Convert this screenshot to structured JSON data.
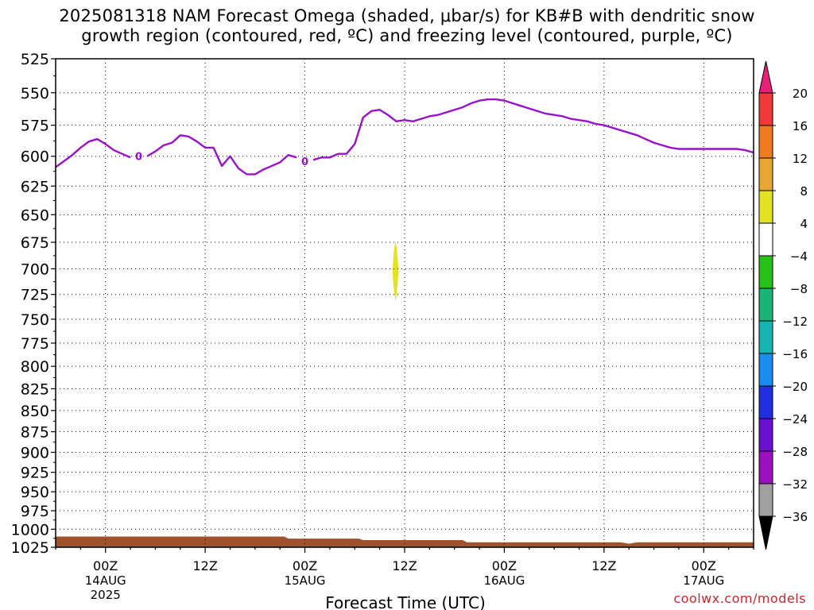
{
  "title": {
    "line1": "2025081318 NAM Forecast Omega (shaded, μbar/s) for KB#B with dendritic snow",
    "line2": "growth region (contoured, red, ºC) and freezing level (contoured, purple, ºC)"
  },
  "credit": "coolwx.com/models",
  "chart_data": {
    "type": "line",
    "xlabel": "Forecast Time (UTC)",
    "ylabel": "",
    "x_range_hours": [
      18,
      102
    ],
    "y_range": [
      1025,
      525
    ],
    "y_scale": "log-pressure",
    "grid": true,
    "y_ticks": [
      525,
      550,
      575,
      600,
      625,
      650,
      675,
      700,
      725,
      750,
      775,
      800,
      825,
      850,
      875,
      900,
      925,
      950,
      975,
      1000,
      1025
    ],
    "x_ticks": [
      {
        "hour": 24,
        "label": "00Z",
        "sub": [
          "14AUG",
          "2025"
        ]
      },
      {
        "hour": 36,
        "label": "12Z",
        "sub": []
      },
      {
        "hour": 48,
        "label": "00Z",
        "sub": [
          "15AUG"
        ]
      },
      {
        "hour": 60,
        "label": "12Z",
        "sub": []
      },
      {
        "hour": 72,
        "label": "00Z",
        "sub": [
          "16AUG"
        ]
      },
      {
        "hour": 84,
        "label": "12Z",
        "sub": []
      },
      {
        "hour": 96,
        "label": "00Z",
        "sub": [
          "17AUG"
        ]
      }
    ],
    "freezing_level": {
      "color": "#9a12c8",
      "label": "0",
      "label_points": [
        [
          28,
          600
        ],
        [
          48,
          604
        ]
      ],
      "points": [
        [
          18,
          609
        ],
        [
          19,
          604
        ],
        [
          20,
          599
        ],
        [
          21,
          593
        ],
        [
          22,
          588
        ],
        [
          23,
          586
        ],
        [
          24,
          590
        ],
        [
          25,
          595
        ],
        [
          26,
          598
        ],
        [
          27,
          601
        ],
        [
          28,
          600
        ],
        [
          29,
          600
        ],
        [
          30,
          596
        ],
        [
          31,
          591
        ],
        [
          32,
          589
        ],
        [
          33,
          583
        ],
        [
          34,
          584
        ],
        [
          35,
          588
        ],
        [
          36,
          593
        ],
        [
          37,
          593
        ],
        [
          38,
          608
        ],
        [
          39,
          600
        ],
        [
          40,
          610
        ],
        [
          41,
          615
        ],
        [
          42,
          615
        ],
        [
          43,
          611
        ],
        [
          44,
          608
        ],
        [
          45,
          605
        ],
        [
          46,
          599
        ],
        [
          47,
          601
        ],
        [
          48,
          604
        ],
        [
          49,
          603
        ],
        [
          50,
          601
        ],
        [
          51,
          601
        ],
        [
          52,
          598
        ],
        [
          53,
          598
        ],
        [
          54,
          590
        ],
        [
          55,
          569
        ],
        [
          56,
          564
        ],
        [
          57,
          563
        ],
        [
          58,
          567
        ],
        [
          59,
          572
        ],
        [
          60,
          571
        ],
        [
          61,
          572
        ],
        [
          62,
          570
        ],
        [
          63,
          568
        ],
        [
          64,
          567
        ],
        [
          65,
          565
        ],
        [
          66,
          563
        ],
        [
          67,
          561
        ],
        [
          68,
          558
        ],
        [
          69,
          556
        ],
        [
          70,
          555
        ],
        [
          71,
          555
        ],
        [
          72,
          556
        ],
        [
          73,
          558
        ],
        [
          74,
          560
        ],
        [
          75,
          562
        ],
        [
          76,
          564
        ],
        [
          77,
          566
        ],
        [
          78,
          567
        ],
        [
          79,
          568
        ],
        [
          80,
          570
        ],
        [
          81,
          571
        ],
        [
          82,
          572
        ],
        [
          83,
          574
        ],
        [
          84,
          575
        ],
        [
          85,
          577
        ],
        [
          86,
          579
        ],
        [
          87,
          581
        ],
        [
          88,
          583
        ],
        [
          89,
          586
        ],
        [
          90,
          589
        ],
        [
          91,
          591
        ],
        [
          92,
          593
        ],
        [
          93,
          594
        ],
        [
          94,
          594
        ],
        [
          95,
          594
        ],
        [
          96,
          594
        ],
        [
          97,
          594
        ],
        [
          98,
          594
        ],
        [
          99,
          594
        ],
        [
          100,
          594
        ],
        [
          101,
          595
        ],
        [
          102,
          597
        ]
      ]
    },
    "omega_shading": [
      {
        "hour": 58.9,
        "p_top": 673,
        "p_bottom": 732,
        "value_range": [
          4,
          8
        ],
        "color": "#e3e322"
      }
    ],
    "terrain": {
      "color": "#a0522d",
      "points": [
        [
          18,
          1010
        ],
        [
          45.5,
          1010
        ],
        [
          46,
          1013
        ],
        [
          54.5,
          1013
        ],
        [
          55,
          1015
        ],
        [
          67,
          1015
        ],
        [
          67.5,
          1018
        ],
        [
          86,
          1018
        ],
        [
          87,
          1020
        ],
        [
          88,
          1018
        ],
        [
          102,
          1018
        ]
      ]
    },
    "colorbar": {
      "labels": [
        "20",
        "16",
        "12",
        "8",
        "4",
        "-4",
        "-8",
        "-12",
        "-16",
        "-20",
        "-24",
        "-28",
        "-32",
        "-36"
      ],
      "colors": [
        "#e8207a",
        "#f03a3a",
        "#f07a20",
        "#e6a832",
        "#e3e322",
        "#ffffff",
        "#26c21a",
        "#18b478",
        "#18b4b4",
        "#1a8ef0",
        "#2030e0",
        "#6a10d0",
        "#9c10c0",
        "#a0a0a0",
        "#000000"
      ]
    }
  }
}
